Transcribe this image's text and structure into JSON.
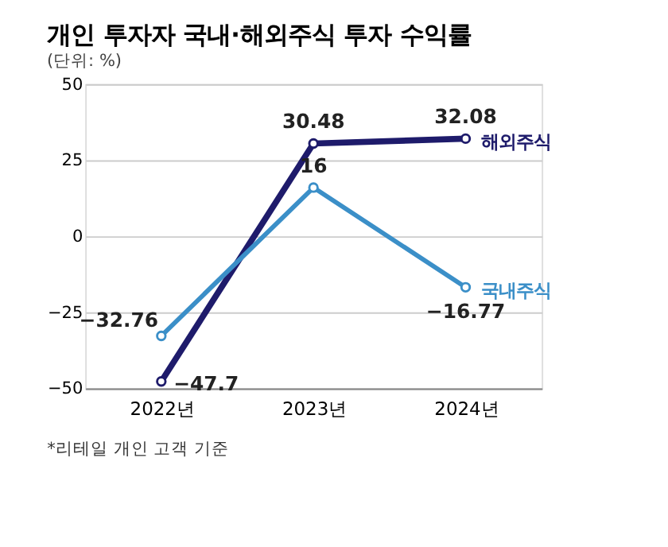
{
  "chart_data": {
    "type": "line",
    "title": "개인 투자자 국내·해외주식 투자 수익률",
    "subtitle": "(단위: %)",
    "categories": [
      "2022년",
      "2023년",
      "2024년"
    ],
    "series": [
      {
        "name": "해외주식",
        "color": "#1e1b6b",
        "values": [
          -47.7,
          30.48,
          32.08
        ]
      },
      {
        "name": "국내주식",
        "color": "#3b8fc8",
        "values": [
          -32.76,
          16,
          -16.77
        ]
      }
    ],
    "ylim": [
      -50,
      50
    ],
    "yticks": [
      -50,
      -25,
      0,
      25,
      50
    ],
    "grid": "y",
    "marker": "circle",
    "line_style": "solid",
    "data_labels": true,
    "legend": false,
    "annotations": [
      "*리테일 개인 고객 기준"
    ]
  }
}
